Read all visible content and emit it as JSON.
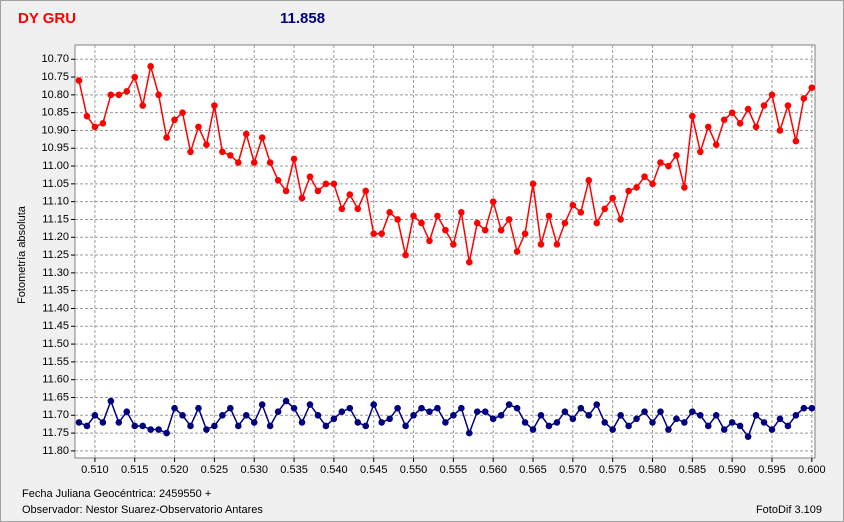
{
  "chart_data": {
    "type": "line",
    "title": "DY GRU",
    "subtitle": "11.858",
    "y_label": "Fotometría absoluta",
    "annotations": [
      "Fecha Juliana Geocéntrica: 2459550 +",
      "Observador: Nestor Suarez-Observatorio Antares",
      "FotoDif 3.109"
    ],
    "x": [
      0.508,
      0.509,
      0.51,
      0.511,
      0.512,
      0.513,
      0.514,
      0.515,
      0.516,
      0.517,
      0.518,
      0.519,
      0.52,
      0.521,
      0.522,
      0.523,
      0.524,
      0.525,
      0.526,
      0.527,
      0.528,
      0.529,
      0.53,
      0.531,
      0.532,
      0.533,
      0.534,
      0.535,
      0.536,
      0.537,
      0.538,
      0.539,
      0.54,
      0.541,
      0.542,
      0.543,
      0.544,
      0.545,
      0.546,
      0.547,
      0.548,
      0.549,
      0.55,
      0.551,
      0.552,
      0.553,
      0.554,
      0.555,
      0.556,
      0.557,
      0.558,
      0.559,
      0.56,
      0.561,
      0.562,
      0.563,
      0.564,
      0.565,
      0.566,
      0.567,
      0.568,
      0.569,
      0.57,
      0.571,
      0.572,
      0.573,
      0.574,
      0.575,
      0.576,
      0.577,
      0.578,
      0.579,
      0.58,
      0.581,
      0.582,
      0.583,
      0.584,
      0.585,
      0.586,
      0.587,
      0.588,
      0.589,
      0.59,
      0.591,
      0.592,
      0.593,
      0.594,
      0.595,
      0.596,
      0.597,
      0.598,
      0.599,
      0.6
    ],
    "series": [
      {
        "color": "#ff0000",
        "values": [
          10.76,
          10.86,
          10.89,
          10.88,
          10.8,
          10.8,
          10.79,
          10.75,
          10.83,
          10.72,
          10.8,
          10.92,
          10.87,
          10.85,
          10.96,
          10.89,
          10.94,
          10.83,
          10.96,
          10.97,
          10.99,
          10.91,
          10.99,
          10.92,
          10.99,
          11.04,
          11.07,
          10.98,
          11.09,
          11.03,
          11.07,
          11.05,
          11.05,
          11.12,
          11.08,
          11.12,
          11.07,
          11.19,
          11.19,
          11.13,
          11.15,
          11.25,
          11.14,
          11.16,
          11.21,
          11.14,
          11.18,
          11.22,
          11.13,
          11.27,
          11.16,
          11.18,
          11.1,
          11.18,
          11.15,
          11.24,
          11.19,
          11.05,
          11.22,
          11.14,
          11.22,
          11.16,
          11.11,
          11.13,
          11.04,
          11.16,
          11.12,
          11.09,
          11.15,
          11.07,
          11.06,
          11.03,
          11.05,
          10.99,
          11.0,
          10.97,
          11.06,
          10.86,
          10.96,
          10.89,
          10.94,
          10.87,
          10.85,
          10.88,
          10.84,
          10.89,
          10.83,
          10.8,
          10.9,
          10.83,
          10.93,
          10.81,
          10.78
        ]
      },
      {
        "color": "#000080",
        "values": [
          11.72,
          11.73,
          11.7,
          11.72,
          11.66,
          11.72,
          11.69,
          11.73,
          11.73,
          11.74,
          11.74,
          11.75,
          11.68,
          11.7,
          11.73,
          11.68,
          11.74,
          11.73,
          11.7,
          11.68,
          11.73,
          11.7,
          11.72,
          11.67,
          11.73,
          11.69,
          11.66,
          11.68,
          11.72,
          11.67,
          11.7,
          11.73,
          11.71,
          11.69,
          11.68,
          11.72,
          11.73,
          11.67,
          11.72,
          11.71,
          11.68,
          11.73,
          11.7,
          11.68,
          11.69,
          11.68,
          11.72,
          11.7,
          11.68,
          11.75,
          11.69,
          11.69,
          11.71,
          11.7,
          11.67,
          11.68,
          11.72,
          11.74,
          11.7,
          11.73,
          11.72,
          11.69,
          11.71,
          11.68,
          11.7,
          11.67,
          11.72,
          11.74,
          11.7,
          11.73,
          11.71,
          11.69,
          11.72,
          11.69,
          11.74,
          11.71,
          11.72,
          11.69,
          11.7,
          11.73,
          11.7,
          11.74,
          11.72,
          11.73,
          11.76,
          11.7,
          11.72,
          11.74,
          11.71,
          11.73,
          11.7,
          11.68,
          11.68
        ]
      }
    ],
    "xlim": [
      0.5075,
      0.6004
    ],
    "ylim": [
      11.82,
      10.66
    ],
    "xticks": [
      {
        "value": 0.51,
        "label": "0.510"
      },
      {
        "value": 0.515,
        "label": "0.515"
      },
      {
        "value": 0.52,
        "label": "0.520"
      },
      {
        "value": 0.525,
        "label": "0.525"
      },
      {
        "value": 0.53,
        "label": "0.530"
      },
      {
        "value": 0.535,
        "label": "0.535"
      },
      {
        "value": 0.54,
        "label": "0.540"
      },
      {
        "value": 0.545,
        "label": "0.545"
      },
      {
        "value": 0.55,
        "label": "0.550"
      },
      {
        "value": 0.555,
        "label": "0.555"
      },
      {
        "value": 0.56,
        "label": "0.560"
      },
      {
        "value": 0.565,
        "label": "0.565"
      },
      {
        "value": 0.57,
        "label": "0.570"
      },
      {
        "value": 0.575,
        "label": "0.575"
      },
      {
        "value": 0.58,
        "label": "0.580"
      },
      {
        "value": 0.585,
        "label": "0.585"
      },
      {
        "value": 0.59,
        "label": "0.590"
      },
      {
        "value": 0.595,
        "label": "0.595"
      },
      {
        "value": 0.6,
        "label": "0.600"
      }
    ],
    "yticks": [
      {
        "value": 10.7,
        "label": "10.70"
      },
      {
        "value": 10.75,
        "label": "10.75"
      },
      {
        "value": 10.8,
        "label": "10.80"
      },
      {
        "value": 10.85,
        "label": "10.85"
      },
      {
        "value": 10.9,
        "label": "10.90"
      },
      {
        "value": 10.95,
        "label": "10.95"
      },
      {
        "value": 11.0,
        "label": "11.00"
      },
      {
        "value": 11.05,
        "label": "11.05"
      },
      {
        "value": 11.1,
        "label": "11.10"
      },
      {
        "value": 11.15,
        "label": "11.15"
      },
      {
        "value": 11.2,
        "label": "11.20"
      },
      {
        "value": 11.25,
        "label": "11.25"
      },
      {
        "value": 11.3,
        "label": "11.30"
      },
      {
        "value": 11.35,
        "label": "11.35"
      },
      {
        "value": 11.4,
        "label": "11.40"
      },
      {
        "value": 11.45,
        "label": "11.45"
      },
      {
        "value": 11.5,
        "label": "11.50"
      },
      {
        "value": 11.55,
        "label": "11.55"
      },
      {
        "value": 11.6,
        "label": "11.60"
      },
      {
        "value": 11.65,
        "label": "11.65"
      },
      {
        "value": 11.7,
        "label": "11.70"
      },
      {
        "value": 11.75,
        "label": "11.75"
      },
      {
        "value": 11.8,
        "label": "11.80"
      }
    ],
    "grid": true
  }
}
